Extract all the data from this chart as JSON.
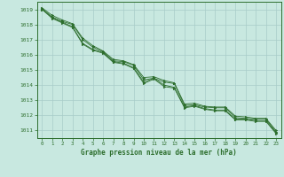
{
  "background_color": "#c8e8e0",
  "grid_color": "#a8ccc8",
  "line_color": "#2d6e2d",
  "marker_color": "#2d6e2d",
  "title": "Graphe pression niveau de la mer (hPa)",
  "xlim": [
    -0.5,
    23.5
  ],
  "ylim": [
    1010.5,
    1019.5
  ],
  "yticks": [
    1011,
    1012,
    1013,
    1014,
    1015,
    1016,
    1017,
    1018,
    1019
  ],
  "xticks": [
    0,
    1,
    2,
    3,
    4,
    5,
    6,
    7,
    8,
    9,
    10,
    11,
    12,
    13,
    14,
    15,
    16,
    17,
    18,
    19,
    20,
    21,
    22,
    23
  ],
  "series": [
    [
      1019.0,
      1018.5,
      1018.2,
      1018.0,
      1017.0,
      1016.5,
      1016.2,
      1015.6,
      1015.55,
      1015.3,
      1014.35,
      1014.45,
      1014.2,
      1014.1,
      1012.65,
      1012.7,
      1012.55,
      1012.5,
      1012.5,
      1011.85,
      1011.8,
      1011.75,
      1011.75,
      1010.9
    ],
    [
      1019.0,
      1018.4,
      1018.1,
      1017.8,
      1016.7,
      1016.3,
      1016.1,
      1015.5,
      1015.4,
      1015.1,
      1014.1,
      1014.4,
      1013.9,
      1013.8,
      1012.5,
      1012.6,
      1012.4,
      1012.3,
      1012.3,
      1011.7,
      1011.7,
      1011.6,
      1011.6,
      1010.8
    ],
    [
      1019.1,
      1018.6,
      1018.3,
      1018.05,
      1017.1,
      1016.6,
      1016.25,
      1015.7,
      1015.6,
      1015.35,
      1014.5,
      1014.55,
      1014.3,
      1014.15,
      1012.75,
      1012.8,
      1012.6,
      1012.55,
      1012.55,
      1011.95,
      1011.9,
      1011.8,
      1011.8,
      1011.0
    ],
    [
      1019.05,
      1018.45,
      1018.15,
      1017.85,
      1016.75,
      1016.35,
      1016.15,
      1015.55,
      1015.45,
      1015.15,
      1014.2,
      1014.45,
      1014.0,
      1013.85,
      1012.55,
      1012.65,
      1012.45,
      1012.35,
      1012.35,
      1011.75,
      1011.75,
      1011.65,
      1011.65,
      1010.85
    ]
  ]
}
